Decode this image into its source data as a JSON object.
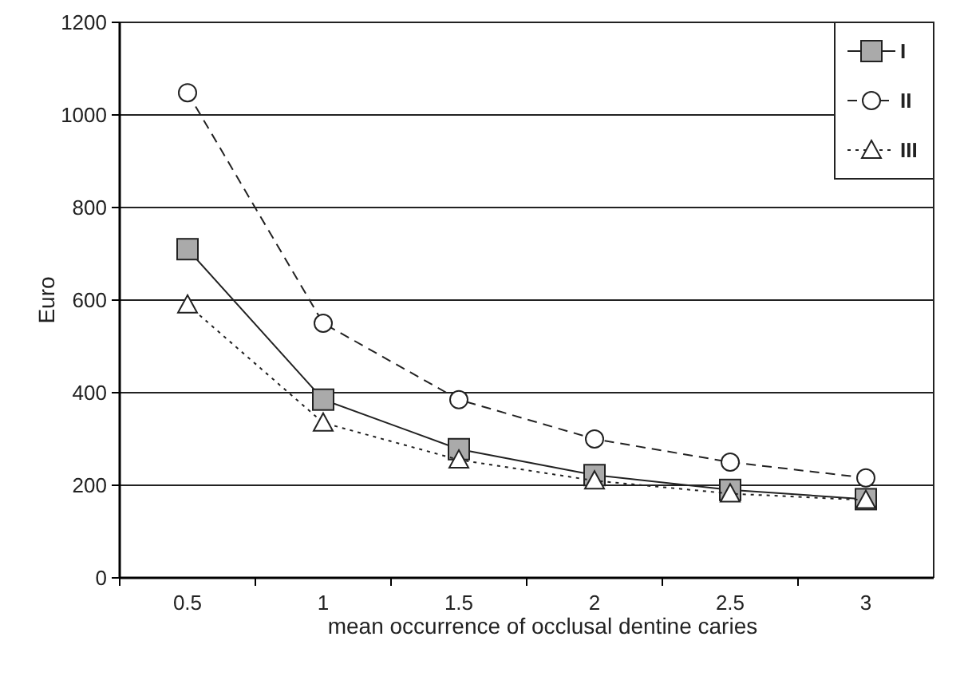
{
  "chart_data": {
    "type": "line",
    "xlabel": "mean occurrence of occlusal dentine caries",
    "ylabel": "Euro",
    "categories": [
      "0.5",
      "1",
      "1.5",
      "2",
      "2.5",
      "3"
    ],
    "series": [
      {
        "name": "I",
        "color": "#222222",
        "marker": "square",
        "line_style": "solid",
        "values": [
          710,
          385,
          278,
          222,
          190,
          170
        ]
      },
      {
        "name": "II",
        "color": "#222222",
        "marker": "circle",
        "line_style": "dashed",
        "values": [
          1048,
          550,
          385,
          300,
          250,
          216
        ]
      },
      {
        "name": "III",
        "color": "#222222",
        "marker": "triangle",
        "line_style": "dotted",
        "values": [
          590,
          335,
          255,
          210,
          182,
          168
        ]
      }
    ],
    "ylim": [
      0,
      1200
    ],
    "yticks": [
      0,
      200,
      400,
      600,
      800,
      1000,
      1200
    ],
    "grid": "y",
    "legend": "top right"
  }
}
